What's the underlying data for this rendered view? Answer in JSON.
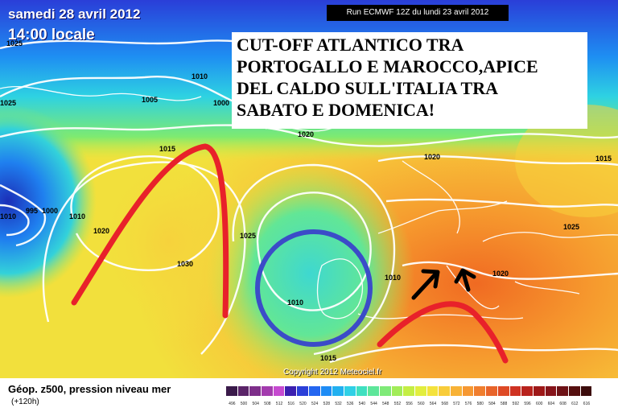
{
  "header": {
    "date": "samedi 28 avril 2012",
    "time": "14:00 locale",
    "run": "Run ECMWF 12Z du lundi 23 avril 2012"
  },
  "annotation": {
    "lines": [
      "CUT-OFF ATLANTICO TRA",
      "PORTOGALLO E MAROCCO,APICE",
      "DEL CALDO SULL'ITALIA TRA",
      "SABATO E DOMENICA!"
    ]
  },
  "footer": {
    "copyright": "Copyright 2012 Meteociel.fr",
    "legend_title": "Géop. z500, pression niveau mer",
    "legend_subtitle": "(+120h)"
  },
  "isobars": [
    "1025",
    "1010",
    "1025",
    "1005",
    "1000",
    "1020",
    "1015",
    "995",
    "1000",
    "1010",
    "1020",
    "1030",
    "1025",
    "1020",
    "1010",
    "1010",
    "1020",
    "1025",
    "1015",
    "1010",
    "1015"
  ],
  "scale": {
    "labels": [
      "496",
      "500",
      "504",
      "508",
      "512",
      "516",
      "520",
      "524",
      "528",
      "532",
      "536",
      "540",
      "544",
      "548",
      "552",
      "556",
      "560",
      "564",
      "568",
      "572",
      "576",
      "580",
      "584",
      "588",
      "592",
      "596",
      "600",
      "604",
      "608",
      "612",
      "616"
    ],
    "colors": [
      "#3a1a4a",
      "#5a2468",
      "#7e2f8a",
      "#a33bae",
      "#c64ad0",
      "#3b1fb0",
      "#2b3fd8",
      "#2466f0",
      "#1e8cf5",
      "#21b0f0",
      "#2fd0e6",
      "#3fe0c0",
      "#5de69a",
      "#7fea78",
      "#a2ec58",
      "#c4ee44",
      "#e2ee3e",
      "#f4e23c",
      "#f8cc3a",
      "#f8b236",
      "#f69832",
      "#f07e2e",
      "#e8642a",
      "#de4a26",
      "#cf3222",
      "#b8221c",
      "#9e1818",
      "#86141a",
      "#6e1216",
      "#561010",
      "#3c0c0c"
    ]
  }
}
